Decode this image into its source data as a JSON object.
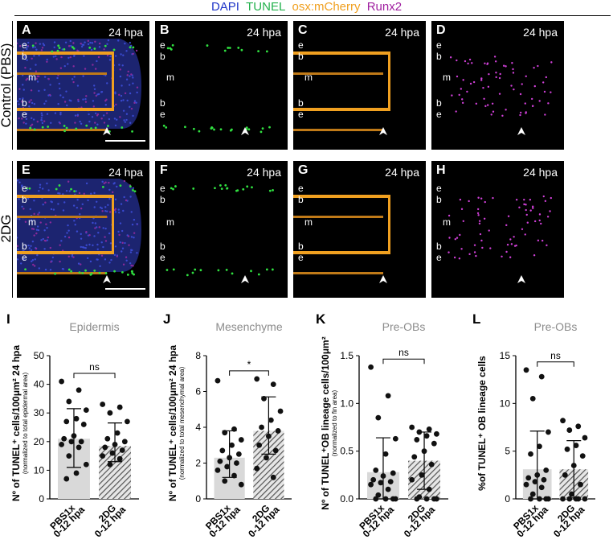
{
  "legend": [
    {
      "text": "DAPI",
      "color": "#1f35c8"
    },
    {
      "text": "TUNEL",
      "color": "#22b14c"
    },
    {
      "text": "osx:mCherry",
      "color": "#f0a020"
    },
    {
      "text": "Runx2",
      "color": "#a020a0"
    }
  ],
  "rows": [
    "Control (PBS)",
    "2DG"
  ],
  "panels": [
    {
      "letter": "A",
      "time": "24 hpa"
    },
    {
      "letter": "B",
      "time": "24 hpa"
    },
    {
      "letter": "C",
      "time": "24 hpa"
    },
    {
      "letter": "D",
      "time": "24 hpa"
    },
    {
      "letter": "E",
      "time": "24 hpa"
    },
    {
      "letter": "F",
      "time": "24 hpa"
    },
    {
      "letter": "G",
      "time": "24 hpa"
    },
    {
      "letter": "H",
      "time": "24 hpa"
    }
  ],
  "tissue_labels": [
    "e",
    "b",
    "m",
    "b",
    "e"
  ],
  "chart_data": [
    {
      "type": "bar",
      "panel": "I",
      "title": "Epidermis",
      "ylabel": "Nº of TUNEL⁺ cells/100μm² 24 hpa",
      "ylabel_sub": "(normalized to total epidermal area)",
      "ylim": [
        0,
        50
      ],
      "yticks": [
        "0",
        "10",
        "20",
        "30",
        "40",
        "50"
      ],
      "categories": [
        "PBS1x 0-12 hpa",
        "2DG 0-12 hpa"
      ],
      "values": [
        21,
        18.5
      ],
      "errors": [
        [
          11,
          31.5
        ],
        [
          13,
          26.5
        ]
      ],
      "significance": "ns",
      "points": [
        [
          41,
          38,
          34,
          31,
          28,
          27,
          26,
          22,
          21,
          20,
          20,
          19,
          18,
          15,
          12,
          9,
          7
        ],
        [
          33,
          32,
          30,
          27,
          23,
          21,
          20,
          19,
          18,
          17,
          16,
          15,
          14,
          12
        ]
      ]
    },
    {
      "type": "bar",
      "panel": "J",
      "title": "Mesenchyme",
      "ylabel": "Nº of TUNEL⁺ cells/100μm² 24 hpa",
      "ylabel_sub": "(normalized to total mesenchymal area)",
      "ylim": [
        0,
        8
      ],
      "yticks": [
        "0",
        "2",
        "4",
        "6",
        "8"
      ],
      "categories": [
        "PBS1x 0-12 hpa",
        "2DG 0-12 hpa"
      ],
      "values": [
        2.3,
        3.8
      ],
      "errors": [
        [
          1.2,
          3.8
        ],
        [
          2.5,
          5.7
        ]
      ],
      "significance": "*",
      "points": [
        [
          6.6,
          3.9,
          3.7,
          3.3,
          3.0,
          2.7,
          2.5,
          2.3,
          2.1,
          2.0,
          1.8,
          1.6,
          1.3,
          1.0,
          0.8
        ],
        [
          6.7,
          6.4,
          5.6,
          4.9,
          4.4,
          4.0,
          3.8,
          3.5,
          3.0,
          2.7,
          2.3,
          1.7,
          1.2
        ]
      ]
    },
    {
      "type": "bar",
      "panel": "K",
      "title": "Pre-OBs",
      "ylabel": "Nº of TUNEL⁺OB lineage cells/100μm²",
      "ylabel_sub": "(normalized to fin area)",
      "ylim": [
        0,
        1.5
      ],
      "yticks": [
        "0.0",
        "0.5",
        "1.0",
        "1.5"
      ],
      "categories": [
        "PBS1x 0-12 hpa",
        "2DG 0-12 hpa"
      ],
      "values": [
        0.28,
        0.4
      ],
      "errors": [
        [
          0,
          0.64
        ],
        [
          0.1,
          0.7
        ]
      ],
      "significance": "ns",
      "points": [
        [
          1.38,
          1.08,
          0.85,
          0.63,
          0.47,
          0.3,
          0.27,
          0.24,
          0.2,
          0.18,
          0.17,
          0.15,
          0.1,
          0.04,
          0.0,
          0.0,
          0.0,
          0.0
        ],
        [
          0.75,
          0.73,
          0.7,
          0.68,
          0.66,
          0.62,
          0.58,
          0.5,
          0.44,
          0.36,
          0.25,
          0.2,
          0.1,
          0.02,
          0.0,
          0.0,
          0.0,
          0.0
        ]
      ]
    },
    {
      "type": "bar",
      "panel": "L",
      "title": "Pre-OBs",
      "ylabel": "%of TUNEL⁺ OB lineage cells",
      "ylabel_sub": "",
      "ylim": [
        0,
        15
      ],
      "yticks": [
        "0",
        "5",
        "10",
        "15"
      ],
      "categories": [
        "PBS1x 0-12 hpa",
        "2DG 0-12 hpa"
      ],
      "values": [
        3.1,
        3.1
      ],
      "errors": [
        [
          0,
          7.1
        ],
        [
          0.1,
          6.1
        ]
      ],
      "significance": "ns",
      "points": [
        [
          13.5,
          12.8,
          10.5,
          7.0,
          5.5,
          4.7,
          3.0,
          2.5,
          2.2,
          2.0,
          1.8,
          1.5,
          1.2,
          0.5,
          0.0,
          0.0,
          0.0,
          0.0
        ],
        [
          8.2,
          7.6,
          7.2,
          6.4,
          5.6,
          5.2,
          4.5,
          3.5,
          2.5,
          1.5,
          0.5,
          0.0,
          0.0,
          0.0,
          0.0,
          0.0
        ]
      ]
    }
  ]
}
